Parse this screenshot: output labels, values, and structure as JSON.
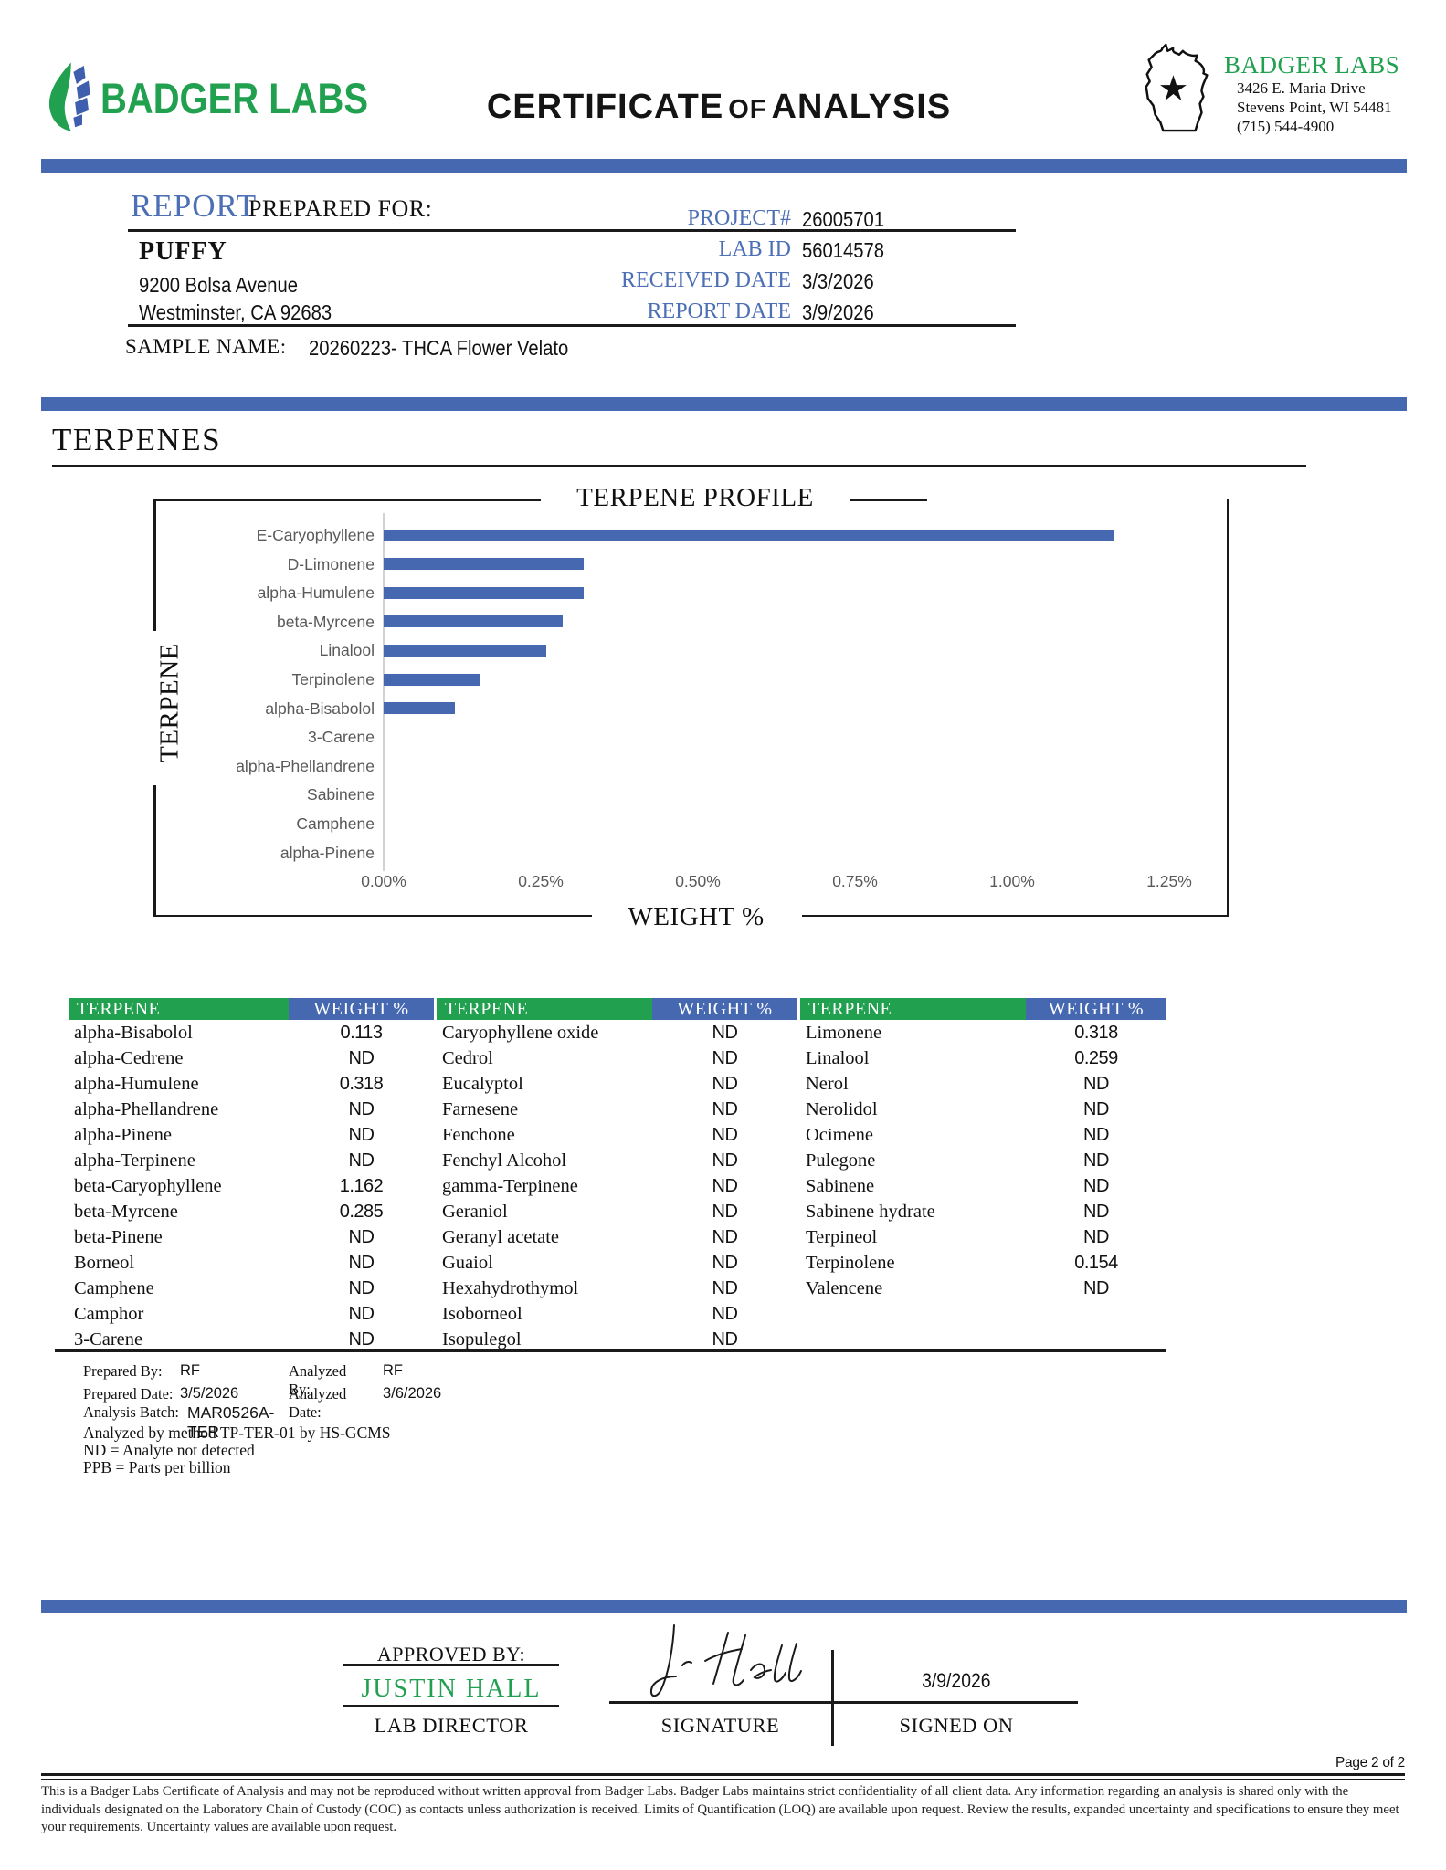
{
  "header": {
    "logo_text": "BADGER LABS",
    "title_part1": "CERTIFICATE",
    "title_of": "OF",
    "title_part2": "ANALYSIS",
    "lab_name": "BADGER LABS",
    "address_line1": "3426 E. Maria Drive",
    "address_line2": "Stevens Point, WI 54481",
    "address_line3": "(715) 544-4900"
  },
  "report": {
    "section_label": "REPORT",
    "section_sublabel": "PREPARED FOR:",
    "client_name": "PUFFY",
    "client_address1": "9200 Bolsa Avenue",
    "client_address2": "Westminster, CA 92683",
    "fields": [
      {
        "label": "PROJECT#",
        "value": "26005701"
      },
      {
        "label": "LAB ID",
        "value": "56014578"
      },
      {
        "label": "RECEIVED DATE",
        "value": "3/3/2026"
      },
      {
        "label": "REPORT DATE",
        "value": "3/9/2026"
      }
    ],
    "sample_label": "SAMPLE NAME:",
    "sample_value": "20260223- THCA Flower Velato"
  },
  "section_title": "TERPENES",
  "chart_data": {
    "type": "bar",
    "orientation": "horizontal",
    "title": "TERPENE PROFILE",
    "xlabel": "WEIGHT %",
    "ylabel": "TERPENE",
    "categories": [
      "E-Caryophyllene",
      "D-Limonene",
      "alpha-Humulene",
      "beta-Myrcene",
      "Linalool",
      "Terpinolene",
      "alpha-Bisabolol",
      "3-Carene",
      "alpha-Phellandrene",
      "Sabinene",
      "Camphene",
      "alpha-Pinene"
    ],
    "values": [
      1.162,
      0.318,
      0.318,
      0.285,
      0.259,
      0.154,
      0.113,
      0,
      0,
      0,
      0,
      0
    ],
    "xlim": [
      0,
      1.25
    ],
    "xticks": [
      "0.00%",
      "0.25%",
      "0.50%",
      "0.75%",
      "1.00%",
      "1.25%"
    ],
    "bar_color": "#4568b1",
    "grid": false,
    "legend": "none"
  },
  "table": {
    "header_name": "TERPENE",
    "header_value": "WEIGHT %",
    "groups": [
      {
        "rows": [
          [
            "alpha-Bisabolol",
            "0.113"
          ],
          [
            "alpha-Cedrene",
            "ND"
          ],
          [
            "alpha-Humulene",
            "0.318"
          ],
          [
            "alpha-Phellandrene",
            "ND"
          ],
          [
            "alpha-Pinene",
            "ND"
          ],
          [
            "alpha-Terpinene",
            "ND"
          ],
          [
            "beta-Caryophyllene",
            "1.162"
          ],
          [
            "beta-Myrcene",
            "0.285"
          ],
          [
            "beta-Pinene",
            "ND"
          ],
          [
            "Borneol",
            "ND"
          ],
          [
            "Camphene",
            "ND"
          ],
          [
            "Camphor",
            "ND"
          ],
          [
            "3-Carene",
            "ND"
          ]
        ]
      },
      {
        "rows": [
          [
            "Caryophyllene oxide",
            "ND"
          ],
          [
            "Cedrol",
            "ND"
          ],
          [
            "Eucalyptol",
            "ND"
          ],
          [
            "Farnesene",
            "ND"
          ],
          [
            "Fenchone",
            "ND"
          ],
          [
            "Fenchyl Alcohol",
            "ND"
          ],
          [
            "gamma-Terpinene",
            "ND"
          ],
          [
            "Geraniol",
            "ND"
          ],
          [
            "Geranyl acetate",
            "ND"
          ],
          [
            "Guaiol",
            "ND"
          ],
          [
            "Hexahydrothymol",
            "ND"
          ],
          [
            "Isoborneol",
            "ND"
          ],
          [
            "Isopulegol",
            "ND"
          ]
        ]
      },
      {
        "rows": [
          [
            "Limonene",
            "0.318"
          ],
          [
            "Linalool",
            "0.259"
          ],
          [
            "Nerol",
            "ND"
          ],
          [
            "Nerolidol",
            "ND"
          ],
          [
            "Ocimene",
            "ND"
          ],
          [
            "Pulegone",
            "ND"
          ],
          [
            "Sabinene",
            "ND"
          ],
          [
            "Sabinene hydrate",
            "ND"
          ],
          [
            "Terpineol",
            "ND"
          ],
          [
            "Terpinolene",
            "0.154"
          ],
          [
            "Valencene",
            "ND"
          ]
        ]
      }
    ]
  },
  "analysis": {
    "prepared_by_label": "Prepared By:",
    "prepared_by": "RF",
    "analyzed_by_label": "Analyzed By:",
    "analyzed_by": "RF",
    "prepared_date_label": "Prepared Date:",
    "prepared_date": "3/5/2026",
    "analyzed_date_label": "Analyzed Date:",
    "analyzed_date": "3/6/2026",
    "batch_label": "Analysis Batch:",
    "batch": "MAR0526A-TER",
    "method_note": "Analyzed by method TP-TER-01 by HS-GCMS",
    "nd_note": "ND = Analyte not detected",
    "ppb_note": "PPB = Parts per billion"
  },
  "signoff": {
    "approved_by_label": "APPROVED BY:",
    "approver": "JUSTIN HALL",
    "approver_title": "LAB DIRECTOR",
    "signature_label": "SIGNATURE",
    "signed_on_label": "SIGNED ON",
    "signed_date": "3/9/2026"
  },
  "footer": {
    "page": "Page 2 of 2",
    "disclaimer": "This is a Badger Labs Certificate of Analysis and may not be reproduced without written approval from Badger Labs. Badger Labs maintains strict confidentiality of all client data. Any information regarding an analysis is shared only with the individuals designated on the Laboratory Chain of Custody (COC) as contacts unless authorization is received. Limits of Quantification (LOQ) are available upon request. Review the results, expanded uncertainty and specifications to ensure they meet your requirements. Uncertainty values are available upon request."
  },
  "colors": {
    "accent_blue": "#4568b1",
    "accent_green": "#21a04f",
    "label_blue": "#4c6fb5",
    "chart_text_gray": "#595959"
  }
}
